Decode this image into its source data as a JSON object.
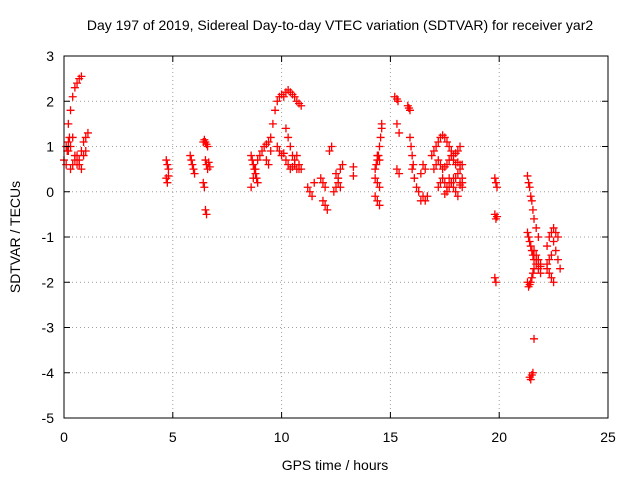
{
  "chart_data": {
    "type": "scatter",
    "title": "Day 197 of 2019, Sidereal Day-to-day VTEC variation (SDTVAR) for receiver yar2",
    "xlabel": "GPS time / hours",
    "ylabel": "SDTVAR / TECUs",
    "xlim": [
      0,
      25
    ],
    "ylim": [
      -5,
      3
    ],
    "xticks": [
      "0",
      "5",
      "10",
      "15",
      "20",
      "25"
    ],
    "yticks": [
      "3",
      "2",
      "1",
      "0",
      "-1",
      "-2",
      "-3",
      "-4",
      "-5"
    ],
    "grid": true,
    "marker": "plus",
    "color": "#ff0000",
    "series": [
      {
        "name": "SDTVAR",
        "x": [
          0.0,
          0.1,
          0.2,
          0.3,
          0.4,
          0.5,
          0.6,
          0.7,
          0.8,
          0.2,
          0.3,
          0.4,
          0.5,
          0.6,
          0.7,
          0.8,
          0.9,
          1.0,
          1.1,
          0.3,
          0.4,
          0.5,
          0.6,
          0.7,
          0.8,
          0.9,
          1.0,
          0.1,
          0.15,
          0.2,
          0.25,
          4.7,
          4.75,
          4.8,
          4.7,
          4.75,
          4.8,
          5.8,
          5.85,
          5.9,
          5.95,
          6.0,
          6.4,
          6.45,
          6.5,
          6.55,
          6.6,
          6.5,
          6.55,
          6.6,
          6.65,
          6.7,
          6.4,
          6.45,
          6.5,
          6.55,
          8.6,
          8.65,
          8.7,
          8.75,
          8.8,
          8.85,
          8.9,
          8.6,
          8.7,
          8.8,
          8.9,
          9.0,
          9.1,
          9.2,
          9.3,
          9.4,
          9.5,
          9.3,
          9.4,
          9.5,
          9.6,
          9.7,
          9.8,
          9.9,
          10.0,
          10.1,
          10.2,
          10.3,
          10.4,
          10.5,
          10.6,
          10.7,
          10.8,
          10.9,
          9.8,
          9.9,
          10.0,
          10.1,
          10.2,
          10.3,
          10.4,
          10.5,
          10.6,
          10.7,
          10.8,
          10.9,
          10.2,
          10.3,
          10.4,
          10.5,
          10.6,
          10.7,
          10.8,
          11.2,
          11.3,
          11.4,
          11.5,
          11.8,
          11.9,
          12.0,
          11.9,
          12.0,
          12.1,
          12.2,
          12.3,
          12.4,
          12.5,
          12.6,
          12.7,
          12.8,
          12.5,
          12.6,
          12.7,
          13.3,
          13.3,
          14.3,
          14.35,
          14.4,
          14.45,
          14.5,
          14.55,
          14.6,
          14.3,
          14.4,
          14.5,
          14.3,
          14.4,
          14.5,
          14.4,
          14.5,
          14.6,
          15.2,
          15.3,
          15.35,
          15.3,
          15.4,
          15.3,
          15.4,
          15.8,
          15.85,
          15.9,
          15.9,
          15.95,
          16.0,
          16.05,
          16.0,
          16.1,
          16.2,
          16.3,
          16.4,
          16.5,
          16.6,
          16.4,
          16.5,
          16.6,
          16.7,
          16.9,
          17.0,
          17.1,
          17.2,
          17.3,
          17.4,
          17.5,
          17.6,
          17.7,
          17.8,
          17.9,
          18.0,
          18.1,
          18.2,
          17.0,
          17.1,
          17.2,
          17.3,
          17.4,
          17.5,
          17.6,
          17.7,
          17.8,
          17.9,
          18.0,
          18.1,
          18.2,
          18.3,
          17.2,
          17.3,
          17.4,
          17.5,
          17.6,
          17.7,
          17.8,
          17.9,
          18.0,
          18.1,
          18.2,
          18.3,
          17.5,
          17.6,
          17.7,
          17.8,
          17.9,
          18.0,
          18.1,
          18.2,
          18.3,
          18.2,
          18.3,
          19.8,
          19.85,
          19.9,
          19.8,
          19.85,
          19.9,
          19.8,
          19.85,
          21.3,
          21.35,
          21.4,
          21.45,
          21.5,
          21.55,
          21.6,
          21.7,
          21.8,
          21.3,
          21.35,
          21.4,
          21.45,
          21.5,
          21.55,
          21.6,
          21.3,
          21.35,
          21.4,
          21.45,
          21.5,
          21.55,
          21.6,
          21.7,
          21.8,
          21.9,
          21.6,
          21.7,
          21.8,
          21.9,
          21.7,
          21.8,
          21.9,
          21.4,
          21.45,
          21.5,
          21.55,
          21.6,
          22.2,
          22.3,
          22.4,
          22.5,
          22.6,
          22.7,
          22.8,
          22.2,
          22.3,
          22.4,
          22.5,
          22.2,
          22.3,
          22.4,
          22.5,
          22.6,
          22.7
        ],
        "y": [
          0.7,
          1.0,
          1.5,
          1.8,
          2.1,
          2.3,
          2.4,
          2.5,
          2.55,
          0.9,
          1.0,
          1.2,
          0.8,
          0.6,
          0.7,
          0.9,
          1.1,
          1.2,
          1.3,
          0.5,
          0.6,
          0.7,
          0.8,
          0.6,
          0.5,
          0.8,
          0.9,
          0.6,
          0.9,
          1.1,
          1.2,
          0.7,
          0.6,
          0.5,
          0.3,
          0.2,
          0.35,
          0.8,
          0.7,
          0.6,
          0.5,
          0.4,
          1.1,
          1.15,
          1.1,
          1.05,
          1.0,
          0.7,
          0.6,
          0.5,
          0.65,
          0.55,
          0.2,
          0.1,
          -0.4,
          -0.5,
          0.8,
          0.7,
          0.6,
          0.5,
          0.4,
          0.3,
          0.2,
          0.1,
          0.3,
          0.5,
          0.7,
          0.8,
          0.9,
          1.0,
          1.05,
          1.1,
          0.9,
          0.7,
          0.6,
          1.2,
          1.5,
          1.8,
          2.0,
          2.1,
          2.15,
          2.1,
          2.2,
          2.25,
          2.2,
          2.15,
          2.1,
          2.0,
          1.95,
          1.9,
          1.0,
          0.9,
          0.8,
          0.85,
          0.7,
          0.6,
          0.5,
          0.55,
          0.7,
          0.8,
          0.6,
          0.5,
          1.4,
          1.2,
          1.0,
          0.8,
          0.6,
          0.5,
          0.5,
          0.1,
          0.0,
          -0.1,
          0.2,
          0.3,
          0.2,
          0.1,
          -0.2,
          -0.3,
          -0.4,
          0.9,
          1.0,
          0.0,
          0.1,
          0.3,
          0.5,
          0.6,
          0.4,
          0.2,
          0.1,
          0.55,
          0.35,
          0.5,
          0.6,
          0.7,
          0.8,
          1.0,
          1.2,
          1.4,
          0.3,
          0.2,
          0.1,
          -0.1,
          -0.2,
          -0.3,
          0.8,
          0.7,
          1.5,
          2.1,
          2.05,
          2.0,
          1.5,
          1.3,
          0.5,
          0.4,
          1.9,
          1.85,
          1.8,
          1.2,
          1.0,
          0.8,
          0.6,
          0.5,
          0.3,
          0.1,
          0.0,
          -0.2,
          0.6,
          0.5,
          0.4,
          -0.1,
          -0.2,
          -0.1,
          0.8,
          0.9,
          1.0,
          1.1,
          1.2,
          1.25,
          1.2,
          1.1,
          1.0,
          0.9,
          0.8,
          0.85,
          0.9,
          1.0,
          0.5,
          0.6,
          0.7,
          0.6,
          0.5,
          0.55,
          0.6,
          0.7,
          0.8,
          0.7,
          0.6,
          0.65,
          0.5,
          0.6,
          0.1,
          0.2,
          0.3,
          0.2,
          0.1,
          0.3,
          0.2,
          0.1,
          0.3,
          0.4,
          0.2,
          0.1,
          -0.05,
          0.0,
          0.1,
          0.2,
          0.3,
          0.0,
          -0.1,
          0.15,
          0.2,
          0.6,
          0.3,
          0.3,
          0.2,
          0.1,
          -0.5,
          -0.6,
          -0.55,
          -1.9,
          -2.0,
          0.35,
          0.2,
          0.1,
          -0.1,
          -0.2,
          -0.4,
          -0.6,
          -0.8,
          -1.0,
          -0.9,
          -1.0,
          -1.1,
          -1.2,
          -1.3,
          -1.4,
          -1.5,
          -2.0,
          -2.1,
          -2.05,
          -2.0,
          -1.9,
          -1.8,
          -1.7,
          -1.6,
          -1.5,
          -1.6,
          -1.3,
          -1.5,
          -1.7,
          -1.8,
          -1.4,
          -1.5,
          -1.65,
          -4.1,
          -4.15,
          -4.05,
          -4.0,
          -3.25,
          -1.2,
          -1.0,
          -0.9,
          -1.1,
          -1.3,
          -1.5,
          -1.7,
          -1.7,
          -1.8,
          -1.9,
          -2.0,
          -1.6,
          -1.5,
          -1.4,
          -0.8,
          -0.9,
          -1.0
        ]
      }
    ]
  }
}
